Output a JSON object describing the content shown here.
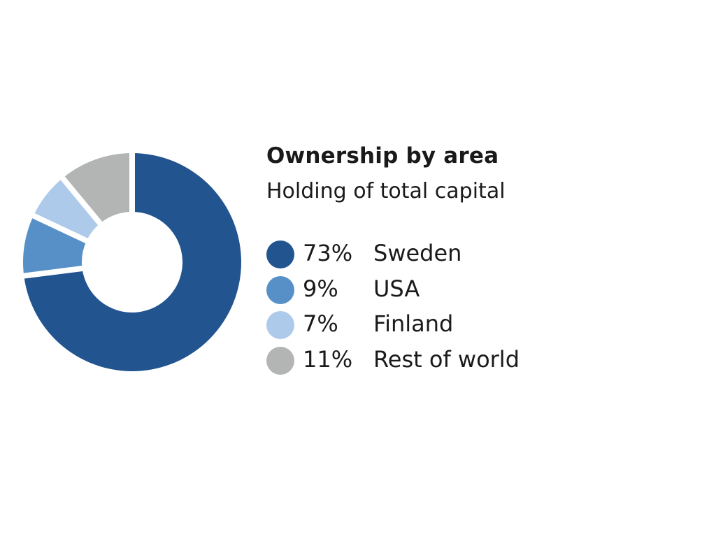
{
  "chart_data": {
    "type": "pie",
    "donut": true,
    "title": "Ownership by area",
    "subtitle": "Holding of total capital",
    "legend_position": "right",
    "slices": [
      {
        "label": "Sweden",
        "value": 73,
        "display": "73%",
        "color": "#22548f"
      },
      {
        "label": "USA",
        "value": 9,
        "display": "9%",
        "color": "#5790c6"
      },
      {
        "label": "Finland",
        "value": 7,
        "display": "7%",
        "color": "#aecaeb"
      },
      {
        "label": "Rest of world",
        "value": 11,
        "display": "11%",
        "color": "#b3b4b4"
      }
    ]
  }
}
